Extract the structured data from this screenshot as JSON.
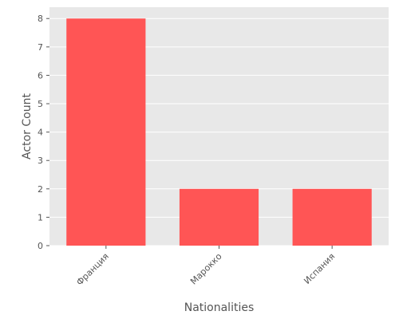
{
  "chart_data": {
    "type": "bar",
    "categories": [
      "Франция",
      "Марокко",
      "Испания"
    ],
    "values": [
      8,
      2,
      2
    ],
    "title": "",
    "xlabel": "Nationalities",
    "ylabel": "Actor Count",
    "ylim": [
      0,
      8.4
    ],
    "yticks": [
      0,
      1,
      2,
      3,
      4,
      5,
      6,
      7,
      8
    ],
    "grid": true,
    "legend": "none",
    "bar_color": "#ff5555",
    "background_color": "#e8e8e8",
    "grid_color": "#ffffff",
    "tick_label_rotation": "45 degrees"
  }
}
